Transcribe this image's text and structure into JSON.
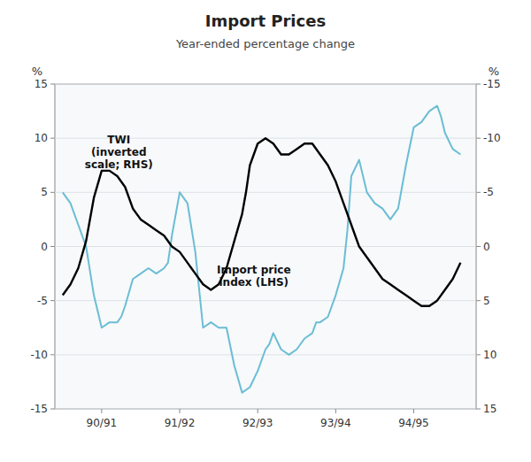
{
  "chart_data": {
    "type": "line",
    "title": "Import Prices",
    "subtitle": "Year-ended percentage change",
    "y_label": "%",
    "y2_label": "%",
    "xlim": [
      -0.1,
      5.3
    ],
    "xticks": [
      {
        "value": 0.5,
        "label": "90/91"
      },
      {
        "value": 1.5,
        "label": "91/92"
      },
      {
        "value": 2.5,
        "label": "92/93"
      },
      {
        "value": 3.5,
        "label": "93/94"
      },
      {
        "value": 4.5,
        "label": "94/95"
      }
    ],
    "ylim": [
      -15,
      15
    ],
    "yticks": [
      -15,
      -10,
      -5,
      0,
      5,
      10,
      15
    ],
    "y2lim": [
      15,
      -15
    ],
    "y2ticks": [
      15,
      10,
      5,
      0,
      -5,
      -10,
      -15
    ],
    "grid": true,
    "series": [
      {
        "color": "#6bbdd4",
        "axis": "y2",
        "x": [
          0.0,
          0.1,
          0.2,
          0.3,
          0.4,
          0.5,
          0.6,
          0.7,
          0.75,
          0.8,
          0.9,
          1.0,
          1.1,
          1.2,
          1.3,
          1.35,
          1.4,
          1.5,
          1.6,
          1.7,
          1.8,
          1.9,
          2.0,
          2.1,
          2.2,
          2.3,
          2.4,
          2.5,
          2.6,
          2.65,
          2.7,
          2.8,
          2.9,
          3.0,
          3.1,
          3.2,
          3.25,
          3.3,
          3.4,
          3.5,
          3.6,
          3.65,
          3.7,
          3.8,
          3.9,
          4.0,
          4.1,
          4.2,
          4.3,
          4.4,
          4.5,
          4.6,
          4.7,
          4.8,
          4.85,
          4.9,
          5.0,
          5.1
        ],
        "values": [
          -5.0,
          -4.0,
          -2.0,
          0.0,
          4.5,
          7.5,
          7.0,
          7.0,
          6.5,
          5.5,
          3.0,
          2.5,
          2.0,
          2.5,
          2.0,
          1.5,
          -1.0,
          -5.0,
          -4.0,
          0.5,
          7.5,
          7.0,
          7.5,
          7.5,
          11.0,
          13.5,
          13.0,
          11.5,
          9.5,
          9.0,
          8.0,
          9.5,
          10.0,
          9.5,
          8.5,
          8.0,
          7.0,
          7.0,
          6.5,
          4.5,
          2.0,
          -1.5,
          -6.5,
          -8.0,
          -5.0,
          -4.0,
          -3.5,
          -2.5,
          -3.5,
          -7.5,
          -11.0,
          -11.5,
          -12.5,
          -13.0,
          -12.0,
          -10.5,
          -9.0,
          -8.5
        ]
      },
      {
        "color": "#000000",
        "x": [
          0.0,
          0.1,
          0.2,
          0.3,
          0.4,
          0.5,
          0.6,
          0.7,
          0.8,
          0.9,
          1.0,
          1.1,
          1.2,
          1.3,
          1.4,
          1.5,
          1.6,
          1.65,
          1.7,
          1.8,
          1.9,
          2.0,
          2.1,
          2.2,
          2.3,
          2.35,
          2.4,
          2.5,
          2.6,
          2.7,
          2.8,
          2.9,
          3.0,
          3.1,
          3.2,
          3.3,
          3.4,
          3.5,
          3.6,
          3.7,
          3.8,
          3.9,
          4.0,
          4.1,
          4.2,
          4.3,
          4.4,
          4.5,
          4.6,
          4.7,
          4.8,
          4.9,
          5.0,
          5.1
        ],
        "values": [
          -4.5,
          -3.5,
          -2.0,
          0.5,
          4.5,
          7.0,
          7.0,
          6.5,
          5.5,
          3.5,
          2.5,
          2.0,
          1.5,
          1.0,
          0.0,
          -0.5,
          -1.5,
          -2.0,
          -2.5,
          -3.5,
          -4.0,
          -3.5,
          -2.0,
          0.5,
          3.0,
          5.0,
          7.5,
          9.5,
          10.0,
          9.5,
          8.5,
          8.5,
          9.0,
          9.5,
          9.5,
          8.5,
          7.5,
          6.0,
          4.0,
          2.0,
          0.0,
          -1.0,
          -2.0,
          -3.0,
          -3.5,
          -4.0,
          -4.5,
          -5.0,
          -5.5,
          -5.5,
          -5.0,
          -4.0,
          -3.0,
          -1.5
        ]
      }
    ],
    "annotations": [
      {
        "text": "TWI\n(inverted\nscale; RHS)",
        "x": 0.72,
        "y": 10.5
      },
      {
        "text": "Import price\nindex (LHS)",
        "x": 2.45,
        "y": -1.5
      }
    ]
  }
}
